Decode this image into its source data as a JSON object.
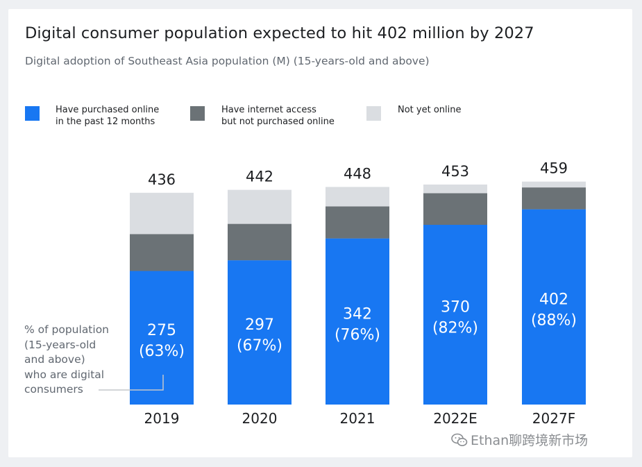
{
  "title": "Digital consumer population expected to hit 402 million by 2027",
  "subtitle": "Digital adoption of Southeast Asia population (M) (15-years-old and above)",
  "legend": [
    {
      "label": "Have purchased online\nin the past 12 months",
      "color": "#1877f2"
    },
    {
      "label": "Have internet access\nbut not purchased online",
      "color": "#6b7276"
    },
    {
      "label": "Not yet online",
      "color": "#dadde1"
    }
  ],
  "annotation": "% of population\n(15-years-old\nand above)\nwho are digital\nconsumers",
  "watermark": "Ethan聊跨境新市场",
  "colors": {
    "purchased": "#1877f2",
    "internet_only": "#6b7276",
    "not_online": "#dadde1",
    "text": "#1c1e21",
    "muted": "#606770"
  },
  "chart_data": {
    "type": "bar",
    "stacked": true,
    "categories": [
      "2019",
      "2020",
      "2021",
      "2022E",
      "2027F"
    ],
    "series": [
      {
        "name": "Have purchased online in the past 12 months",
        "values": [
          275,
          297,
          342,
          370,
          402
        ]
      },
      {
        "name": "Have internet access but not purchased online",
        "values": [
          76,
          75,
          66,
          65,
          45
        ]
      },
      {
        "name": "Not yet online",
        "values": [
          85,
          70,
          40,
          18,
          12
        ]
      }
    ],
    "totals": [
      436,
      442,
      448,
      453,
      459
    ],
    "percent_labels": [
      "(63%)",
      "(67%)",
      "(76%)",
      "(82%)",
      "(88%)"
    ],
    "title": "Digital consumer population expected to hit 402 million by 2027",
    "legend_position": "top",
    "grid": false
  }
}
